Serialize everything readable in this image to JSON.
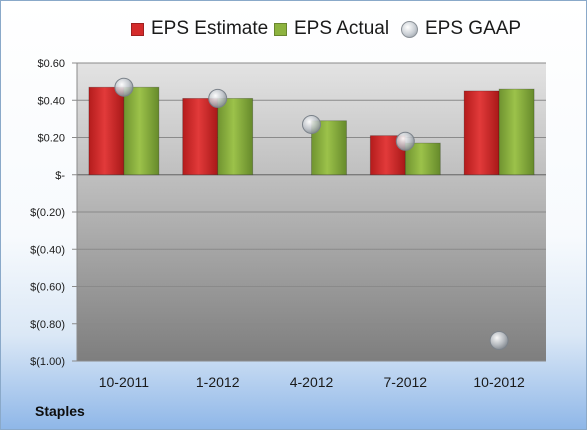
{
  "company": "Staples",
  "chart_data": {
    "type": "bar",
    "categories": [
      "10-2011",
      "1-2012",
      "4-2012",
      "7-2012",
      "10-2012"
    ],
    "series": [
      {
        "name": "EPS Estimate",
        "kind": "bar",
        "color": "#d42b2b",
        "values": [
          0.47,
          0.41,
          null,
          0.21,
          0.45
        ]
      },
      {
        "name": "EPS Actual",
        "kind": "bar",
        "color": "#8db33f",
        "values": [
          0.47,
          0.41,
          0.29,
          0.17,
          0.46
        ]
      },
      {
        "name": "EPS GAAP",
        "kind": "point",
        "color": "#b8bdc3",
        "values": [
          0.47,
          0.41,
          0.27,
          0.18,
          -0.89
        ]
      }
    ],
    "yticks": [
      0.6,
      0.4,
      0.2,
      0,
      -0.2,
      -0.4,
      -0.6,
      -0.8,
      -1.0
    ],
    "ytick_labels": [
      "$0.60",
      "$0.40",
      "$0.20",
      "$-",
      "$(0.20)",
      "$(0.40)",
      "$(0.60)",
      "$(0.80)",
      "$(1.00)"
    ],
    "ylim": [
      -1.0,
      0.6
    ],
    "grid": true,
    "legend_position": "top"
  }
}
